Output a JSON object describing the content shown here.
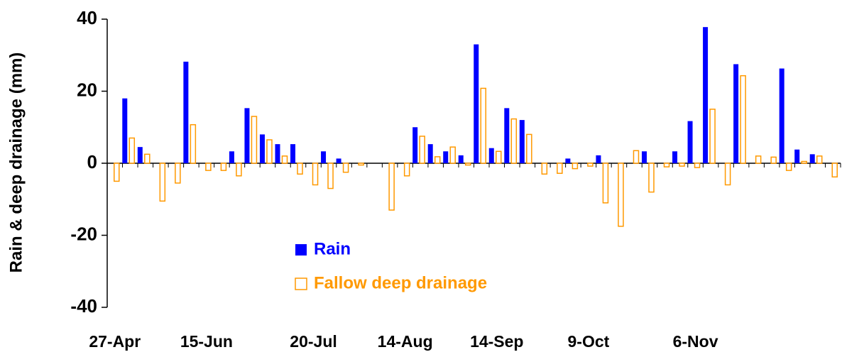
{
  "chart_data": {
    "type": "bar",
    "y_label": "Rain & deep drainage (mm)",
    "categories": [
      "27-Apr",
      null,
      null,
      null,
      null,
      null,
      "15-Jun",
      null,
      null,
      null,
      null,
      null,
      null,
      "20-Jul",
      null,
      null,
      null,
      null,
      null,
      "14-Aug",
      null,
      null,
      null,
      null,
      null,
      "14-Sep",
      null,
      null,
      null,
      null,
      null,
      "9-Oct",
      null,
      null,
      null,
      null,
      null,
      null,
      "6-Nov",
      null,
      null,
      null,
      null,
      null,
      null,
      null,
      null,
      null
    ],
    "series": [
      {
        "name": "Rain",
        "color": "#0000ff",
        "filled": true,
        "values": [
          0,
          18,
          4.5,
          0,
          0,
          28.2,
          0,
          0,
          3.3,
          15.3,
          8,
          5.3,
          5.3,
          0,
          3.3,
          1.3,
          0,
          0,
          0,
          0,
          10,
          5.3,
          3.3,
          2.2,
          33,
          4.2,
          15.3,
          12,
          0,
          0,
          1.3,
          0,
          2.2,
          0,
          0,
          3.3,
          0,
          3.3,
          11.7,
          37.8,
          0,
          27.5,
          0,
          0,
          26.3,
          3.8,
          2.5,
          0
        ]
      },
      {
        "name": "Fallow deep drainage",
        "color": "#ff9900",
        "filled": false,
        "values": [
          -5,
          7,
          2.5,
          -10.5,
          -5.5,
          10.7,
          -2,
          -2,
          -3.5,
          13,
          6.5,
          2,
          -3,
          -6,
          -7,
          -2.5,
          -0.5,
          0,
          -13,
          -3.5,
          7.5,
          1.8,
          4.5,
          -0.5,
          20.8,
          3.3,
          12.3,
          8,
          -3,
          -2.8,
          -1.5,
          -0.8,
          -11,
          -17.5,
          3.5,
          -8,
          -1,
          -0.8,
          -1.2,
          15,
          -6,
          24.3,
          2,
          1.7,
          -2,
          0.5,
          2,
          -3.8
        ]
      }
    ],
    "ylim": [
      -40,
      40
    ],
    "yticks": [
      -40,
      -20,
      0,
      20,
      40
    ]
  }
}
